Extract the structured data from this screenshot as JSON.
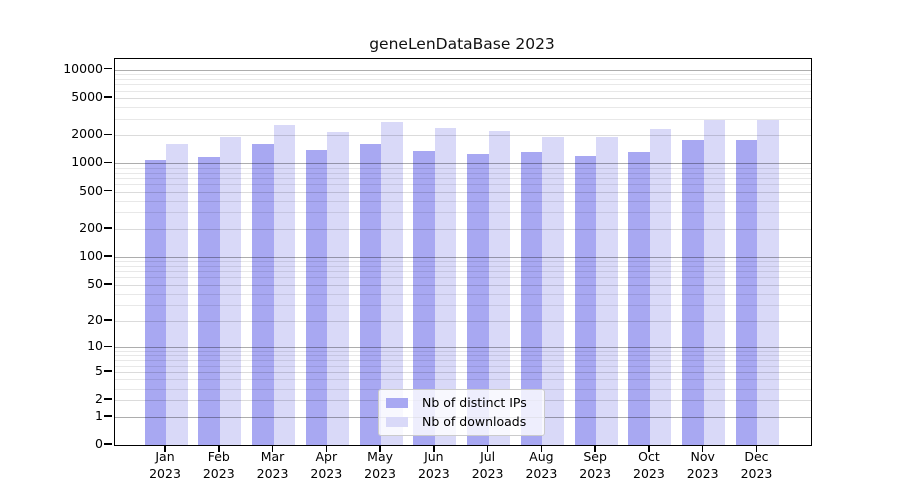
{
  "title": "geneLenDataBase 2023",
  "chart_data": {
    "type": "bar",
    "title": "geneLenDataBase 2023",
    "yscale": "log1p-symlog",
    "ylim": [
      0,
      13000
    ],
    "yticks": [
      0,
      1,
      2,
      5,
      10,
      20,
      50,
      100,
      200,
      500,
      1000,
      2000,
      5000,
      10000
    ],
    "grid": "both-major-and-minor",
    "legend_position": "lower center",
    "categories": [
      "Jan 2023",
      "Feb 2023",
      "Mar 2023",
      "Apr 2023",
      "May 2023",
      "Jun 2023",
      "Jul 2023",
      "Aug 2023",
      "Sep 2023",
      "Oct 2023",
      "Nov 2023",
      "Dec 2023"
    ],
    "series": [
      {
        "name": "Nb of distinct IPs",
        "color": "#a8a8f2",
        "values": [
          1080,
          1170,
          1620,
          1400,
          1625,
          1370,
          1260,
          1320,
          1200,
          1330,
          1770,
          1770
        ]
      },
      {
        "name": "Nb of downloads",
        "color": "#d9d9f8",
        "values": [
          1610,
          1900,
          2570,
          2190,
          2800,
          2370,
          2200,
          1910,
          1910,
          2310,
          2880,
          2900
        ]
      }
    ]
  },
  "colors": {
    "ips_bar": "#a8a8f2",
    "downloads_bar": "#d9d9f8",
    "spine": "#000000",
    "grid_decade": "rgba(0,0,0,0.32)",
    "grid_labeled": "rgba(0,0,0,0.14)",
    "grid_minor": "rgba(0,0,0,0.09)",
    "legend_border": "#cbcbcb"
  }
}
